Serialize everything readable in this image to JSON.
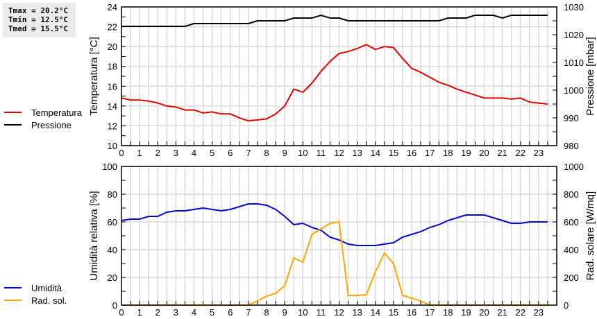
{
  "stats": {
    "tmax": "Tmax = 20.2°C",
    "tmin": "Tmin = 12.5°C",
    "tmed": "Tmed = 15.5°C"
  },
  "legend_top": [
    {
      "label": "Temperatura",
      "color": "#e00000"
    },
    {
      "label": "Pressione",
      "color": "#000000"
    }
  ],
  "legend_bottom": [
    {
      "label": "Umidità",
      "color": "#0000d0"
    },
    {
      "label": "Rad. sol.",
      "color": "#ffa500"
    }
  ],
  "chart_data": [
    {
      "type": "line",
      "title": "",
      "xlabel": "",
      "ylabel": "Temperatura [°C]",
      "y2label": "Pressione [mbar]",
      "ylim": [
        10,
        24
      ],
      "y2lim": [
        980,
        1030
      ],
      "xlim": [
        0,
        24
      ],
      "grid": true,
      "legend_position": "left",
      "x_ticks": [
        "0",
        "1",
        "2",
        "3",
        "4",
        "5",
        "6",
        "7",
        "8",
        "9",
        "10",
        "11",
        "12",
        "13",
        "14",
        "15",
        "16",
        "17",
        "18",
        "19",
        "20",
        "21",
        "22",
        "23"
      ],
      "y_ticks": [
        "10",
        "12",
        "14",
        "16",
        "18",
        "20",
        "22",
        "24"
      ],
      "y2_ticks": [
        "980",
        "990",
        "1000",
        "1010",
        "1020",
        "1030"
      ],
      "x": [
        0,
        0.5,
        1,
        1.5,
        2,
        2.5,
        3,
        3.5,
        4,
        4.5,
        5,
        5.5,
        6,
        6.5,
        7,
        7.5,
        8,
        8.5,
        9,
        9.5,
        10,
        10.5,
        11,
        11.5,
        12,
        12.5,
        13,
        13.5,
        14,
        14.5,
        15,
        15.5,
        16,
        16.5,
        17,
        17.5,
        18,
        18.5,
        19,
        19.5,
        20,
        20.5,
        21,
        21.5,
        22,
        22.5,
        23,
        23.5
      ],
      "series": [
        {
          "name": "Temperatura",
          "axis": "left",
          "color": "#e00000",
          "values": [
            14.8,
            14.6,
            14.6,
            14.5,
            14.3,
            14.0,
            13.9,
            13.6,
            13.6,
            13.3,
            13.4,
            13.2,
            13.2,
            12.8,
            12.5,
            12.6,
            12.7,
            13.2,
            14.0,
            15.7,
            15.4,
            16.3,
            17.5,
            18.5,
            19.3,
            19.5,
            19.8,
            20.2,
            19.7,
            20.0,
            19.9,
            18.8,
            17.8,
            17.4,
            16.9,
            16.4,
            16.1,
            15.7,
            15.4,
            15.1,
            14.8,
            14.8,
            14.8,
            14.7,
            14.8,
            14.4,
            14.3,
            14.2
          ]
        },
        {
          "name": "Pressione",
          "axis": "right",
          "color": "#000000",
          "values": [
            1023,
            1023,
            1023,
            1023,
            1023,
            1023,
            1023,
            1023,
            1024,
            1024,
            1024,
            1024,
            1024,
            1024,
            1024,
            1025,
            1025,
            1025,
            1025,
            1026,
            1026,
            1026,
            1027,
            1026,
            1026,
            1025,
            1025,
            1025,
            1025,
            1025,
            1025,
            1025,
            1025,
            1025,
            1025,
            1025,
            1026,
            1026,
            1026,
            1027,
            1027,
            1027,
            1026,
            1027,
            1027,
            1027,
            1027,
            1027
          ]
        }
      ]
    },
    {
      "type": "line",
      "title": "",
      "xlabel": "",
      "ylabel": "Umidità relativa [%]",
      "y2label": "Rad. solare [W/mq]",
      "ylim": [
        0,
        100
      ],
      "y2lim": [
        0,
        1000
      ],
      "xlim": [
        0,
        24
      ],
      "grid": true,
      "legend_position": "left",
      "x_ticks": [
        "0",
        "1",
        "2",
        "3",
        "4",
        "5",
        "6",
        "7",
        "8",
        "9",
        "10",
        "11",
        "12",
        "13",
        "14",
        "15",
        "16",
        "17",
        "18",
        "19",
        "20",
        "21",
        "22",
        "23"
      ],
      "y_ticks": [
        "0",
        "20",
        "40",
        "60",
        "80",
        "100"
      ],
      "y2_ticks": [
        "0",
        "200",
        "400",
        "600",
        "800",
        "1000"
      ],
      "x": [
        0,
        0.5,
        1,
        1.5,
        2,
        2.5,
        3,
        3.5,
        4,
        4.5,
        5,
        5.5,
        6,
        6.5,
        7,
        7.5,
        8,
        8.5,
        9,
        9.5,
        10,
        10.5,
        11,
        11.5,
        12,
        12.5,
        13,
        13.5,
        14,
        14.5,
        15,
        15.5,
        16,
        16.5,
        17,
        17.5,
        18,
        18.5,
        19,
        19.5,
        20,
        20.5,
        21,
        21.5,
        22,
        22.5,
        23,
        23.5
      ],
      "series": [
        {
          "name": "Umidità",
          "axis": "left",
          "color": "#0000d0",
          "values": [
            61,
            62,
            62,
            64,
            64,
            67,
            68,
            68,
            69,
            70,
            69,
            68,
            69,
            71,
            73,
            73,
            72,
            69,
            64,
            58,
            59,
            56,
            54,
            49,
            47,
            44,
            43,
            43,
            43,
            44,
            45,
            49,
            51,
            53,
            56,
            58,
            61,
            63,
            65,
            65,
            65,
            63,
            61,
            59,
            59,
            60,
            60,
            60
          ]
        },
        {
          "name": "Rad. sol.",
          "axis": "right",
          "color": "#ffa500",
          "values": [
            0,
            0,
            0,
            0,
            0,
            0,
            0,
            0,
            0,
            0,
            0,
            0,
            0,
            0,
            0,
            30,
            65,
            85,
            140,
            340,
            310,
            510,
            550,
            590,
            600,
            70,
            70,
            75,
            240,
            375,
            300,
            70,
            50,
            30,
            0,
            0,
            0,
            0,
            0,
            0,
            0,
            0,
            0,
            0,
            0,
            0,
            0,
            0
          ]
        }
      ]
    }
  ]
}
